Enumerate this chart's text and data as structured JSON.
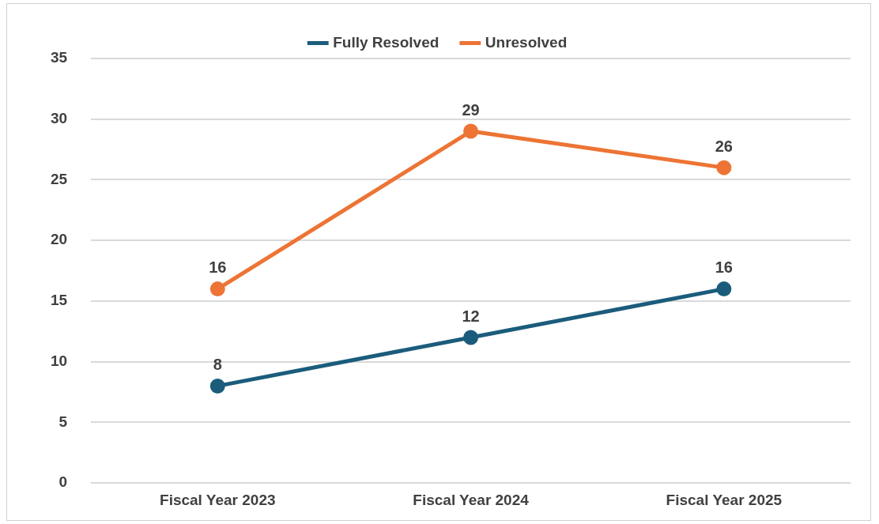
{
  "chart_data": {
    "type": "line",
    "categories": [
      "Fiscal Year 2023",
      "Fiscal Year 2024",
      "Fiscal Year 2025"
    ],
    "series": [
      {
        "name": "Fully Resolved",
        "color": "#1b5c7c",
        "values": [
          8,
          12,
          16
        ]
      },
      {
        "name": "Unresolved",
        "color": "#ed7434",
        "values": [
          16,
          29,
          26
        ]
      }
    ],
    "ylim": [
      0,
      35
    ],
    "yticks": [
      0,
      5,
      10,
      15,
      20,
      25,
      30,
      35
    ],
    "grid": "y",
    "legend": "top",
    "marker": "circle",
    "line_style": "solid",
    "data_labels": true
  }
}
